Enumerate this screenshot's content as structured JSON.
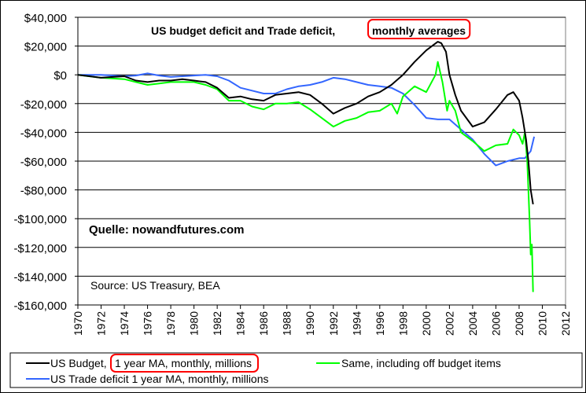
{
  "chart_data": {
    "type": "line",
    "title_parts": {
      "main": "US budget deficit and Trade deficit, ",
      "highlight": "monthly averages"
    },
    "annotations": {
      "quelle": "Quelle: nowandfutures.com",
      "source": "Source: US Treasury, BEA"
    },
    "xlim": [
      1970,
      2012
    ],
    "ylim": [
      -160000,
      40000
    ],
    "x_ticks": [
      1970,
      1972,
      1974,
      1976,
      1978,
      1980,
      1982,
      1984,
      1986,
      1988,
      1990,
      1992,
      1994,
      1996,
      1998,
      2000,
      2002,
      2004,
      2006,
      2008,
      2010,
      2012
    ],
    "y_ticks": [
      {
        "value": 40000,
        "label": "$40,000"
      },
      {
        "value": 20000,
        "label": "$20,000"
      },
      {
        "value": 0,
        "label": "$0"
      },
      {
        "value": -20000,
        "label": "-$20,000"
      },
      {
        "value": -40000,
        "label": "-$40,000"
      },
      {
        "value": -60000,
        "label": "-$60,000"
      },
      {
        "value": -80000,
        "label": "-$80,000"
      },
      {
        "value": -100000,
        "label": "-$100,000"
      },
      {
        "value": -120000,
        "label": "-$120,000"
      },
      {
        "value": -140000,
        "label": "-$140,000"
      },
      {
        "value": -160000,
        "label": "-$160,000"
      }
    ],
    "series": [
      {
        "key": "budget",
        "name": "US Budget, ",
        "name_highlight": "1 year MA, monthly, millions",
        "color": "#000000",
        "x": [
          1970,
          1971,
          1972,
          1973,
          1974,
          1975,
          1976,
          1977,
          1978,
          1979,
          1980,
          1981,
          1982,
          1983,
          1984,
          1985,
          1986,
          1987,
          1988,
          1989,
          1990,
          1991,
          1992,
          1993,
          1994,
          1995,
          1996,
          1997,
          1998,
          1999,
          2000,
          2000.5,
          2001,
          2001.3,
          2001.7,
          2002,
          2002.5,
          2003,
          2004,
          2005,
          2006,
          2007,
          2007.5,
          2008,
          2008.3,
          2008.6,
          2008.8,
          2009,
          2009.2
        ],
        "values": [
          0,
          -1000,
          -2000,
          -1500,
          -1000,
          -4000,
          -5000,
          -4000,
          -4000,
          -3000,
          -4000,
          -5000,
          -9000,
          -16000,
          -15000,
          -17000,
          -18000,
          -14000,
          -13000,
          -12000,
          -14000,
          -20000,
          -27000,
          -23000,
          -20000,
          -15000,
          -12000,
          -7000,
          0,
          9000,
          17000,
          20000,
          23000,
          22000,
          16000,
          0,
          -14000,
          -25000,
          -36000,
          -33000,
          -24000,
          -14000,
          -12000,
          -18000,
          -30000,
          -45000,
          -60000,
          -80000,
          -90000
        ]
      },
      {
        "key": "offbudget",
        "name": "Same, including off budget items",
        "color": "#00ff00",
        "x": [
          1970,
          1972,
          1974,
          1975,
          1976,
          1977,
          1978,
          1979,
          1980,
          1981,
          1982,
          1983,
          1984,
          1985,
          1986,
          1987,
          1988,
          1989,
          1990,
          1991,
          1992,
          1993,
          1994,
          1995,
          1996,
          1997,
          1997.5,
          1998,
          1999,
          2000,
          2000.8,
          2001,
          2001.4,
          2001.8,
          2002,
          2002.5,
          2003,
          2004,
          2005,
          2006,
          2007,
          2007.5,
          2008,
          2008.3,
          2008.5,
          2008.7,
          2008.9,
          2009,
          2009.1,
          2009.2
        ],
        "values": [
          0,
          -2000,
          -3000,
          -5000,
          -7000,
          -6000,
          -5000,
          -5000,
          -5000,
          -7000,
          -10000,
          -18000,
          -18000,
          -22000,
          -24000,
          -20000,
          -20000,
          -19000,
          -24000,
          -30000,
          -36000,
          -32000,
          -30000,
          -26000,
          -25000,
          -20000,
          -27000,
          -15000,
          -8000,
          -12000,
          0,
          9000,
          -5000,
          -25000,
          -18000,
          -25000,
          -40000,
          -46000,
          -53000,
          -49000,
          -48000,
          -38000,
          -42000,
          -48000,
          -40000,
          -60000,
          -100000,
          -125000,
          -118000,
          -151000
        ]
      },
      {
        "key": "trade",
        "name": "US Trade deficit 1 year MA, monthly, millions",
        "color": "#3366ff",
        "x": [
          1970,
          1972,
          1974,
          1975,
          1976,
          1977,
          1978,
          1979,
          1980,
          1981,
          1982,
          1983,
          1984,
          1985,
          1986,
          1987,
          1988,
          1989,
          1990,
          1991,
          1992,
          1993,
          1994,
          1995,
          1996,
          1997,
          1998,
          1999,
          2000,
          2001,
          2002,
          2003,
          2004,
          2005,
          2006,
          2007,
          2008,
          2008.5,
          2009,
          2009.3
        ],
        "values": [
          0,
          0,
          -1000,
          -500,
          1000,
          -500,
          -1500,
          -1000,
          -500,
          0,
          -1000,
          -4000,
          -9000,
          -11000,
          -13000,
          -13000,
          -10000,
          -8000,
          -7000,
          -5000,
          -2000,
          -3000,
          -5000,
          -7000,
          -8000,
          -9000,
          -13000,
          -21000,
          -30000,
          -31000,
          -31000,
          -38000,
          -45000,
          -55000,
          -63000,
          -60000,
          -58000,
          -58000,
          -53000,
          -43000
        ]
      }
    ]
  }
}
